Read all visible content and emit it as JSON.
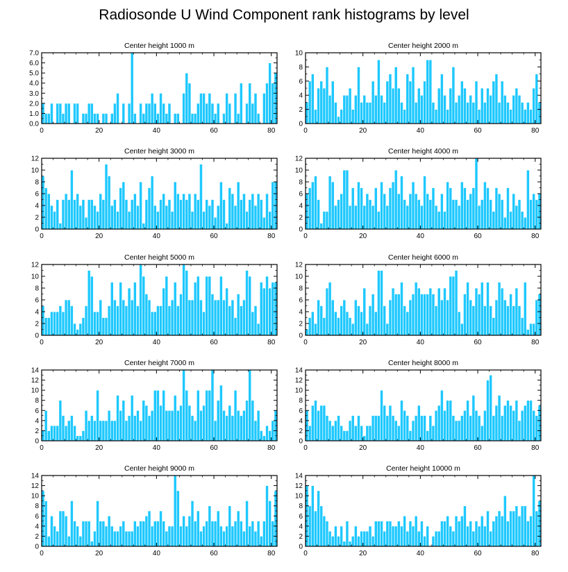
{
  "title": "Radiosonde U Wind Component rank histograms by level",
  "colors": {
    "bar": "#1EC8FF",
    "bar_edge": "#ffffff",
    "axis": "#000000",
    "background": "#ffffff"
  },
  "chart_data": [
    {
      "type": "bar",
      "title": "Center height 1000 m",
      "xlabel": "",
      "ylabel": "",
      "xlim": [
        0,
        82
      ],
      "ylim": [
        0,
        7
      ],
      "xticks": [
        0,
        20,
        40,
        60,
        80
      ],
      "xtick_labels": [
        "0",
        "20",
        "40",
        "60",
        "80"
      ],
      "yticks": [
        0,
        1,
        2,
        3,
        4,
        5,
        6,
        7
      ],
      "ytick_labels": [
        "0.0",
        "1.0",
        "2.0",
        "3.0",
        "4.0",
        "5.0",
        "6.0",
        "7.0"
      ],
      "values": [
        2,
        1,
        1,
        2,
        0,
        2,
        2,
        1,
        2,
        2,
        0,
        2,
        2,
        0,
        1,
        1,
        2,
        2,
        1,
        1,
        0,
        1,
        1,
        0,
        1,
        2,
        3,
        0,
        2,
        0,
        2,
        7,
        1,
        0,
        2,
        1,
        2,
        2,
        3,
        2,
        1,
        3,
        2,
        1,
        2,
        0,
        1,
        1,
        0,
        3,
        5,
        4,
        1,
        1,
        2,
        3,
        3,
        2,
        3,
        2,
        1,
        2,
        0,
        1,
        3,
        2,
        0,
        3,
        1,
        4,
        0,
        2,
        4,
        2,
        3,
        1,
        0,
        3,
        4,
        6,
        4,
        5
      ]
    },
    {
      "type": "bar",
      "title": "Center height 2000 m",
      "xlabel": "",
      "ylabel": "",
      "xlim": [
        0,
        82
      ],
      "ylim": [
        0,
        10
      ],
      "xticks": [
        0,
        20,
        40,
        60,
        80
      ],
      "xtick_labels": [
        "0",
        "20",
        "40",
        "60",
        "80"
      ],
      "yticks": [
        0,
        2,
        4,
        6,
        8,
        10
      ],
      "ytick_labels": [
        "0",
        "2",
        "4",
        "6",
        "8",
        "10"
      ],
      "values": [
        3,
        6,
        7,
        2,
        5,
        6,
        5,
        8,
        4,
        6,
        3,
        1,
        2,
        4,
        4,
        5,
        2,
        4,
        8,
        3,
        4,
        3,
        3,
        6,
        4,
        9,
        4,
        3,
        6,
        7,
        5,
        8,
        5,
        3,
        2,
        7,
        6,
        8,
        3,
        5,
        4,
        6,
        9,
        9,
        3,
        2,
        5,
        7,
        4,
        2,
        5,
        8,
        3,
        4,
        6,
        5,
        3,
        4,
        3,
        6,
        2,
        5,
        3,
        5,
        4,
        6,
        7,
        3,
        6,
        4,
        3,
        2,
        4,
        5,
        4,
        3,
        2,
        3,
        2,
        5,
        7,
        3
      ]
    },
    {
      "type": "bar",
      "title": "Center height 3000 m",
      "xlabel": "",
      "ylabel": "",
      "xlim": [
        0,
        82
      ],
      "ylim": [
        0,
        12
      ],
      "xticks": [
        0,
        20,
        40,
        60,
        80
      ],
      "xtick_labels": [
        "0",
        "20",
        "40",
        "60",
        "80"
      ],
      "yticks": [
        0,
        2,
        4,
        6,
        8,
        10,
        12
      ],
      "ytick_labels": [
        "0",
        "2",
        "4",
        "6",
        "8",
        "10",
        "12"
      ],
      "values": [
        9,
        7,
        6,
        4,
        3,
        5,
        1,
        5,
        6,
        5,
        10,
        5,
        6,
        4,
        5,
        2,
        5,
        5,
        4,
        3,
        6,
        5,
        11,
        9,
        4,
        5,
        3,
        7,
        8,
        5,
        3,
        5,
        6,
        4,
        8,
        1,
        5,
        7,
        9,
        4,
        3,
        5,
        6,
        4,
        5,
        3,
        8,
        6,
        5,
        6,
        5,
        6,
        3,
        6,
        5,
        11,
        3,
        5,
        4,
        5,
        2,
        4,
        8,
        5,
        1,
        7,
        6,
        4,
        8,
        5,
        6,
        3,
        5,
        6,
        4,
        6,
        5,
        2,
        6,
        3,
        8,
        8
      ]
    },
    {
      "type": "bar",
      "title": "Center height 4000 m",
      "xlabel": "",
      "ylabel": "",
      "xlim": [
        0,
        82
      ],
      "ylim": [
        0,
        12
      ],
      "xticks": [
        0,
        20,
        40,
        60,
        80
      ],
      "xtick_labels": [
        "0",
        "20",
        "40",
        "60",
        "80"
      ],
      "yticks": [
        0,
        2,
        4,
        6,
        8,
        10,
        12
      ],
      "ytick_labels": [
        "0",
        "2",
        "4",
        "6",
        "8",
        "10",
        "12"
      ],
      "values": [
        6,
        7,
        8,
        9,
        5,
        1,
        3,
        3,
        9,
        8,
        4,
        5,
        6,
        10,
        10,
        4,
        7,
        4,
        8,
        7,
        4,
        6,
        5,
        4,
        7,
        3,
        8,
        6,
        4,
        7,
        8,
        10,
        6,
        9,
        5,
        4,
        6,
        8,
        6,
        5,
        4,
        9,
        6,
        5,
        7,
        4,
        3,
        6,
        3,
        8,
        7,
        5,
        5,
        4,
        8,
        7,
        5,
        6,
        7,
        12,
        4,
        5,
        8,
        7,
        5,
        3,
        7,
        6,
        5,
        2,
        7,
        3,
        6,
        4,
        5,
        3,
        2,
        10,
        5,
        6,
        5,
        6
      ]
    },
    {
      "type": "bar",
      "title": "Center height 5000 m",
      "xlabel": "",
      "ylabel": "",
      "xlim": [
        0,
        82
      ],
      "ylim": [
        0,
        12
      ],
      "xticks": [
        0,
        20,
        40,
        60,
        80
      ],
      "xtick_labels": [
        "0",
        "20",
        "40",
        "60",
        "80"
      ],
      "yticks": [
        0,
        2,
        4,
        6,
        8,
        10,
        12
      ],
      "ytick_labels": [
        "0",
        "2",
        "4",
        "6",
        "8",
        "10",
        "12"
      ],
      "values": [
        5,
        3,
        3,
        4,
        4,
        4,
        5,
        4,
        6,
        6,
        5,
        2,
        1,
        2,
        3,
        5,
        11,
        10,
        4,
        4,
        6,
        3,
        3,
        5,
        9,
        6,
        5,
        9,
        6,
        5,
        8,
        6,
        9,
        5,
        12,
        10,
        7,
        6,
        4,
        4,
        5,
        5,
        8,
        10,
        5,
        6,
        9,
        5,
        7,
        12,
        11,
        6,
        6,
        9,
        10,
        6,
        4,
        10,
        10,
        7,
        6,
        6,
        10,
        6,
        8,
        5,
        6,
        3,
        7,
        5,
        6,
        11,
        10,
        4,
        5,
        2,
        9,
        8,
        10,
        8,
        9,
        9
      ]
    },
    {
      "type": "bar",
      "title": "Center height 6000 m",
      "xlabel": "",
      "ylabel": "",
      "xlim": [
        0,
        82
      ],
      "ylim": [
        0,
        12
      ],
      "xticks": [
        0,
        20,
        40,
        60,
        80
      ],
      "xtick_labels": [
        "0",
        "20",
        "40",
        "60",
        "80"
      ],
      "yticks": [
        0,
        2,
        4,
        6,
        8,
        10,
        12
      ],
      "ytick_labels": [
        "0",
        "2",
        "4",
        "6",
        "8",
        "10",
        "12"
      ],
      "values": [
        1,
        3,
        4,
        2,
        6,
        5,
        3,
        8,
        9,
        6,
        4,
        3,
        5,
        6,
        4,
        3,
        2,
        6,
        5,
        4,
        8,
        2,
        5,
        7,
        4,
        11,
        11,
        5,
        2,
        6,
        8,
        7,
        7,
        9,
        5,
        4,
        6,
        7,
        9,
        8,
        7,
        7,
        7,
        8,
        7,
        5,
        8,
        6,
        8,
        6,
        10,
        10,
        11,
        4,
        2,
        7,
        9,
        6,
        5,
        8,
        7,
        9,
        5,
        9,
        5,
        3,
        6,
        9,
        8,
        6,
        5,
        7,
        5,
        8,
        5,
        3,
        9,
        1,
        2,
        2,
        6,
        7
      ]
    },
    {
      "type": "bar",
      "title": "Center height 7000 m",
      "xlabel": "",
      "ylabel": "",
      "xlim": [
        0,
        82
      ],
      "ylim": [
        0,
        14
      ],
      "xticks": [
        0,
        20,
        40,
        60,
        80
      ],
      "xtick_labels": [
        "0",
        "20",
        "40",
        "60",
        "80"
      ],
      "yticks": [
        0,
        2,
        4,
        6,
        8,
        10,
        12,
        14
      ],
      "ytick_labels": [
        "0",
        "2",
        "4",
        "6",
        "8",
        "10",
        "12",
        "14"
      ],
      "values": [
        2,
        6,
        2,
        3,
        3,
        3,
        8,
        5,
        3,
        4,
        5,
        3,
        1,
        1,
        2,
        6,
        4,
        5,
        4,
        10,
        4,
        4,
        4,
        6,
        4,
        4,
        9,
        6,
        8,
        4,
        5,
        9,
        5,
        6,
        4,
        8,
        7,
        5,
        6,
        10,
        10,
        7,
        10,
        6,
        6,
        6,
        9,
        6,
        7,
        14,
        10,
        7,
        5,
        4,
        10,
        6,
        7,
        10,
        10,
        14,
        4,
        8,
        11,
        6,
        5,
        7,
        5,
        10,
        6,
        5,
        6,
        8,
        14,
        8,
        4,
        6,
        2,
        1,
        3,
        2,
        4,
        6
      ]
    },
    {
      "type": "bar",
      "title": "Center height 8000 m",
      "xlabel": "",
      "ylabel": "",
      "xlim": [
        0,
        82
      ],
      "ylim": [
        0,
        14
      ],
      "xticks": [
        0,
        20,
        40,
        60,
        80
      ],
      "xtick_labels": [
        "0",
        "20",
        "40",
        "60",
        "80"
      ],
      "yticks": [
        0,
        2,
        4,
        6,
        8,
        10,
        12,
        14
      ],
      "ytick_labels": [
        "0",
        "2",
        "4",
        "6",
        "8",
        "10",
        "12",
        "14"
      ],
      "values": [
        6,
        3,
        7,
        8,
        6,
        7,
        7,
        5,
        4,
        3,
        4,
        5,
        3,
        2,
        2,
        4,
        5,
        3,
        5,
        3,
        1,
        3,
        3,
        5,
        5,
        5,
        10,
        7,
        5,
        7,
        5,
        4,
        3,
        8,
        6,
        5,
        2,
        4,
        5,
        7,
        5,
        5,
        2,
        5,
        3,
        6,
        7,
        10,
        6,
        8,
        8,
        5,
        4,
        4,
        5,
        6,
        8,
        5,
        9,
        6,
        5,
        3,
        6,
        12,
        13,
        5,
        7,
        9,
        5,
        7,
        8,
        7,
        6,
        8,
        4,
        6,
        7,
        8,
        8,
        6,
        5,
        7
      ]
    },
    {
      "type": "bar",
      "title": "Center height 9000 m",
      "xlabel": "",
      "ylabel": "",
      "xlim": [
        0,
        82
      ],
      "ylim": [
        0,
        14
      ],
      "xticks": [
        0,
        20,
        40,
        60,
        80
      ],
      "xtick_labels": [
        "0",
        "20",
        "40",
        "60",
        "80"
      ],
      "yticks": [
        0,
        2,
        4,
        6,
        8,
        10,
        12,
        14
      ],
      "ytick_labels": [
        "0",
        "2",
        "4",
        "6",
        "8",
        "10",
        "12",
        "14"
      ],
      "values": [
        11,
        9,
        2,
        6,
        4,
        3,
        7,
        7,
        6,
        2,
        9,
        5,
        4,
        2,
        5,
        5,
        5,
        1,
        3,
        9,
        5,
        5,
        4,
        6,
        4,
        3,
        3,
        4,
        5,
        3,
        3,
        3,
        5,
        4,
        5,
        5,
        6,
        7,
        4,
        5,
        5,
        7,
        5,
        3,
        4,
        4,
        14,
        11,
        4,
        6,
        4,
        6,
        9,
        5,
        7,
        3,
        4,
        5,
        8,
        5,
        5,
        7,
        4,
        3,
        4,
        8,
        4,
        5,
        7,
        5,
        3,
        9,
        4,
        5,
        3,
        5,
        2,
        5,
        12,
        9,
        5,
        11
      ]
    },
    {
      "type": "bar",
      "title": "Center height 10000 m",
      "xlabel": "",
      "ylabel": "",
      "xlim": [
        0,
        82
      ],
      "ylim": [
        0,
        14
      ],
      "xticks": [
        0,
        20,
        40,
        60,
        80
      ],
      "xtick_labels": [
        "0",
        "20",
        "40",
        "60",
        "80"
      ],
      "yticks": [
        0,
        2,
        4,
        6,
        8,
        10,
        12,
        14
      ],
      "ytick_labels": [
        "0",
        "2",
        "4",
        "6",
        "8",
        "10",
        "12",
        "14"
      ],
      "values": [
        12,
        8,
        12,
        7,
        11,
        8,
        6,
        5,
        3,
        2,
        4,
        2,
        4,
        1,
        5,
        1,
        2,
        4,
        2,
        3,
        3,
        3,
        4,
        2,
        5,
        5,
        5,
        3,
        5,
        5,
        4,
        4,
        5,
        4,
        6,
        3,
        5,
        4,
        6,
        3,
        5,
        2,
        4,
        0,
        2,
        3,
        3,
        5,
        5,
        6,
        4,
        3,
        6,
        5,
        6,
        8,
        4,
        5,
        3,
        5,
        4,
        6,
        4,
        7,
        3,
        5,
        6,
        7,
        6,
        10,
        5,
        7,
        7,
        8,
        6,
        8,
        8,
        5,
        6,
        14,
        7,
        9
      ]
    }
  ]
}
